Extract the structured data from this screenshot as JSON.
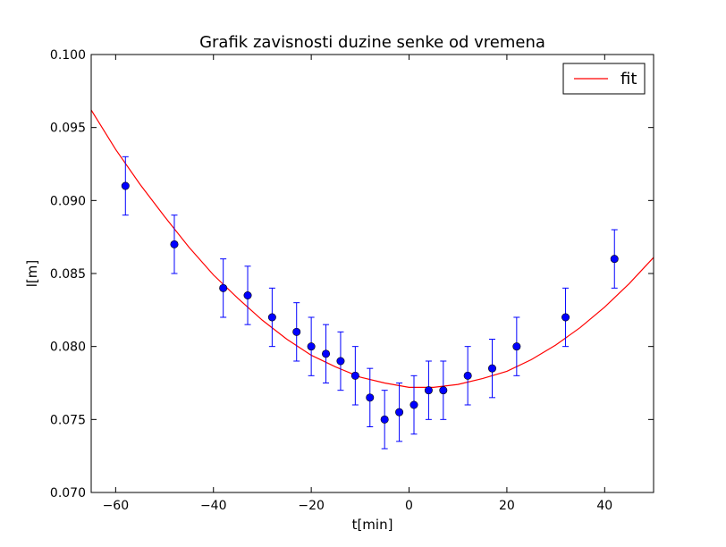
{
  "chart_data": {
    "type": "scatter",
    "title": "Grafik zavisnosti duzine senke od vremena",
    "xlabel": "t[min]",
    "ylabel": "l[m]",
    "xlim": [
      -65,
      50
    ],
    "ylim": [
      0.07,
      0.1
    ],
    "x_ticks": [
      -60,
      -40,
      -20,
      0,
      20,
      40
    ],
    "x_tick_labels": [
      "−60",
      "−40",
      "−20",
      "0",
      "20",
      "40"
    ],
    "y_ticks": [
      0.07,
      0.075,
      0.08,
      0.085,
      0.09,
      0.095,
      0.1
    ],
    "y_tick_labels": [
      "0.070",
      "0.075",
      "0.080",
      "0.085",
      "0.090",
      "0.095",
      "0.100"
    ],
    "grid": false,
    "legend_position": "top-right",
    "series": [
      {
        "type": "errorbar",
        "color": "#0000ff",
        "points": [
          {
            "x": -58,
            "y": 0.091,
            "err": 0.002
          },
          {
            "x": -48,
            "y": 0.087,
            "err": 0.002
          },
          {
            "x": -38,
            "y": 0.084,
            "err": 0.002
          },
          {
            "x": -33,
            "y": 0.0835,
            "err": 0.002
          },
          {
            "x": -28,
            "y": 0.082,
            "err": 0.002
          },
          {
            "x": -23,
            "y": 0.081,
            "err": 0.002
          },
          {
            "x": -20,
            "y": 0.08,
            "err": 0.002
          },
          {
            "x": -17,
            "y": 0.0795,
            "err": 0.002
          },
          {
            "x": -14,
            "y": 0.079,
            "err": 0.002
          },
          {
            "x": -11,
            "y": 0.078,
            "err": 0.002
          },
          {
            "x": -8,
            "y": 0.0765,
            "err": 0.002
          },
          {
            "x": -5,
            "y": 0.075,
            "err": 0.002
          },
          {
            "x": -2,
            "y": 0.0755,
            "err": 0.002
          },
          {
            "x": 1,
            "y": 0.076,
            "err": 0.002
          },
          {
            "x": 4,
            "y": 0.077,
            "err": 0.002
          },
          {
            "x": 7,
            "y": 0.077,
            "err": 0.002
          },
          {
            "x": 12,
            "y": 0.078,
            "err": 0.002
          },
          {
            "x": 17,
            "y": 0.0785,
            "err": 0.002
          },
          {
            "x": 22,
            "y": 0.08,
            "err": 0.002
          },
          {
            "x": 32,
            "y": 0.082,
            "err": 0.002
          },
          {
            "x": 42,
            "y": 0.086,
            "err": 0.002
          }
        ]
      },
      {
        "name": "fit",
        "type": "line",
        "color": "#ff0000",
        "x": [
          -65,
          -60,
          -55,
          -50,
          -45,
          -40,
          -35,
          -30,
          -25,
          -20,
          -15,
          -10,
          -5,
          0,
          5,
          10,
          15,
          20,
          25,
          30,
          35,
          40,
          45,
          50
        ],
        "y": [
          0.0962,
          0.0935,
          0.0911,
          0.0889,
          0.0868,
          0.0849,
          0.0833,
          0.0818,
          0.0805,
          0.0794,
          0.0786,
          0.0779,
          0.0775,
          0.0772,
          0.0772,
          0.0774,
          0.0778,
          0.0783,
          0.0791,
          0.0801,
          0.0813,
          0.0827,
          0.0843,
          0.0861
        ]
      }
    ],
    "legend": [
      {
        "label": "fit",
        "color": "#ff0000"
      }
    ]
  }
}
